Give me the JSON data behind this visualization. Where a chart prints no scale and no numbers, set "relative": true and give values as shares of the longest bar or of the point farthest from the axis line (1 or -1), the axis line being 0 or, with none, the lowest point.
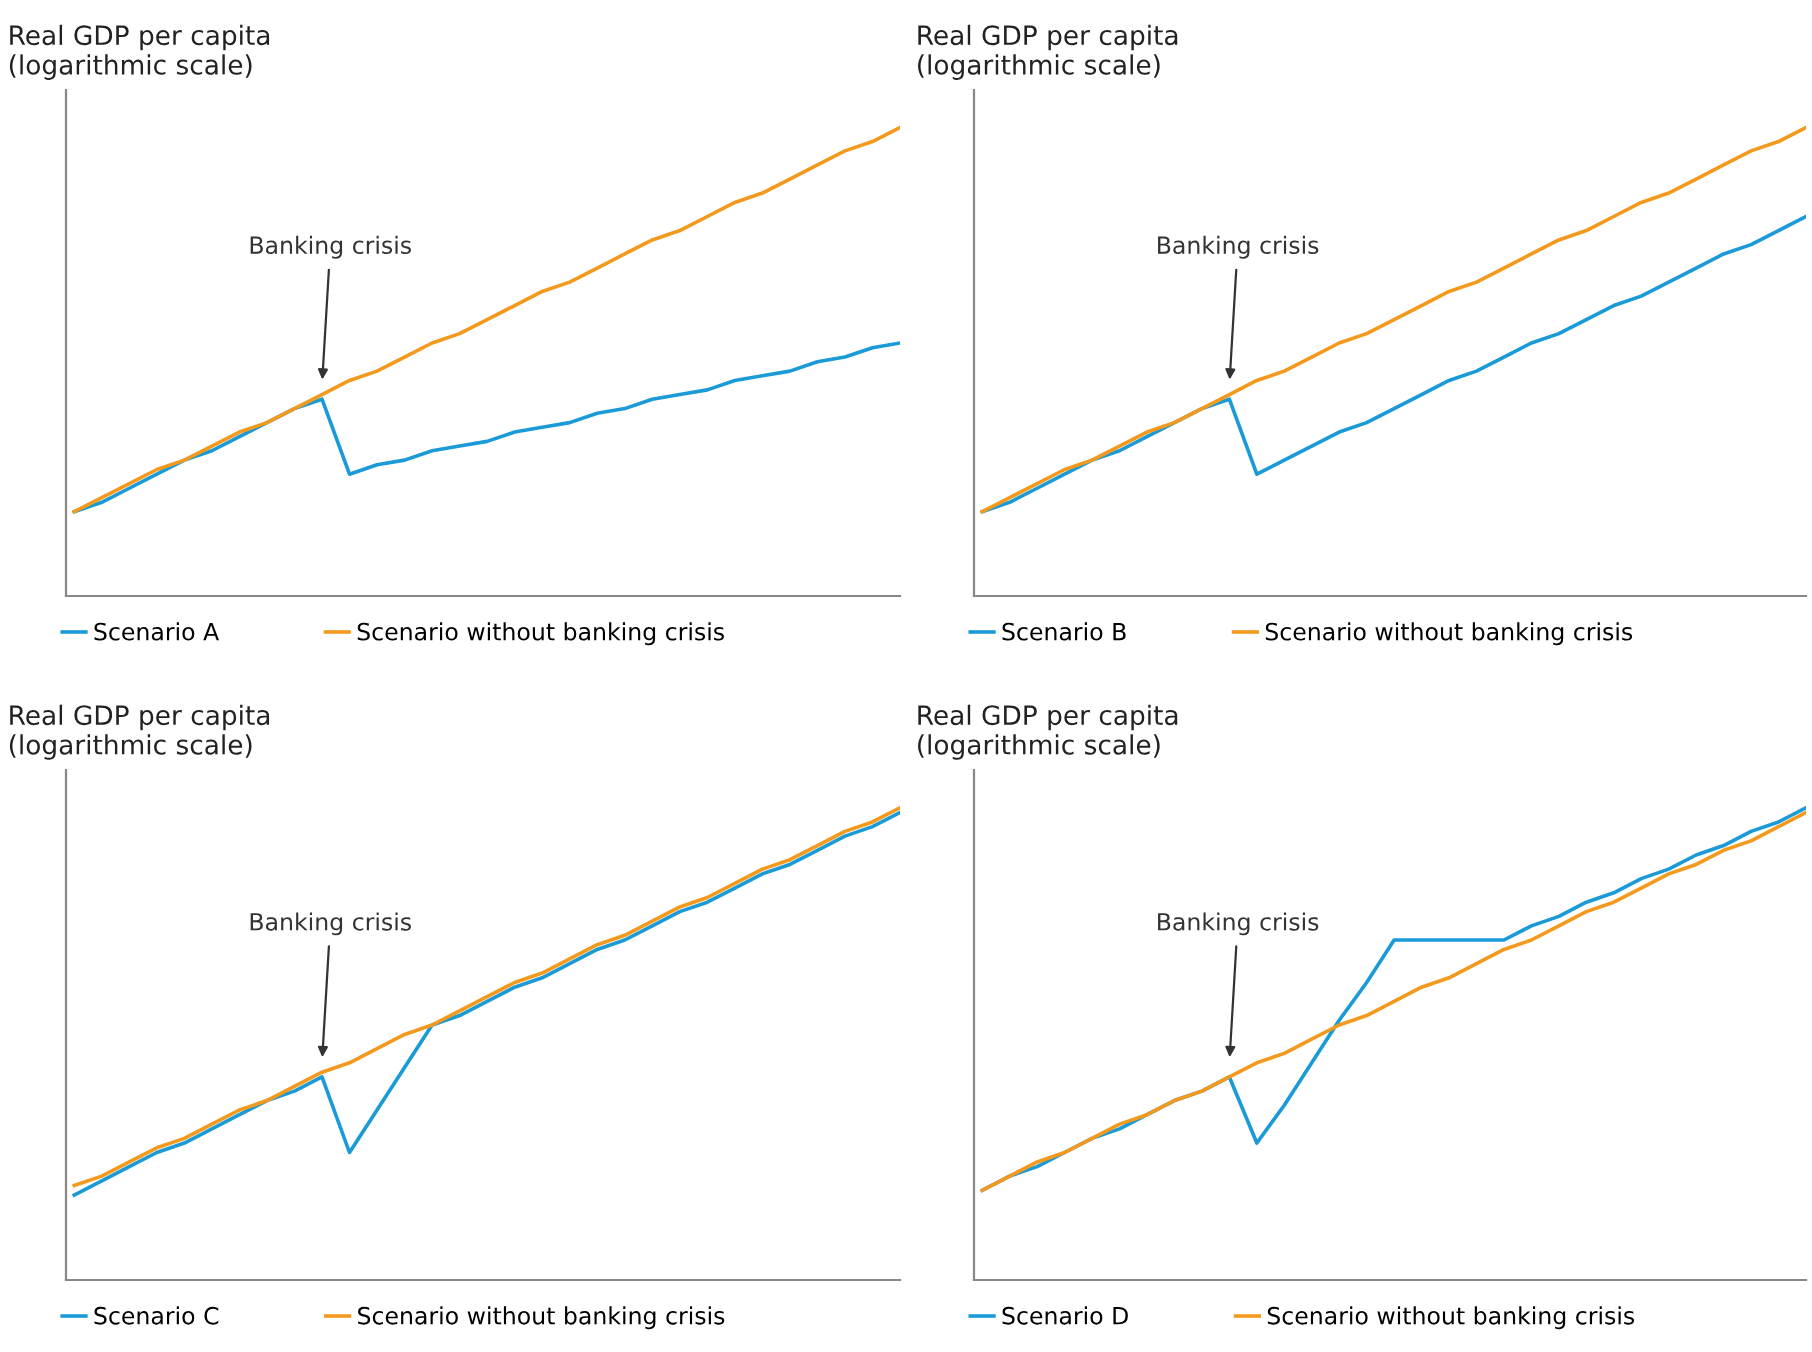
{
  "chart_data": [
    {
      "type": "line",
      "relative": true,
      "ylabel": "Real GDP per capita\n(logarithmic scale)",
      "annotations": [
        "Banking crisis"
      ],
      "legend": "bottom left",
      "grid": false,
      "marker": "none",
      "line_style": "solid",
      "categories": [
        null,
        null,
        null,
        null,
        null,
        null,
        null,
        null,
        null,
        null,
        null,
        null,
        null,
        null,
        null,
        null,
        null,
        null,
        null,
        null,
        null,
        null,
        null,
        null,
        null,
        null,
        null,
        null,
        null,
        null,
        null
      ],
      "series": [
        {
          "name": "Scenario A",
          "color": "#1a9ad6",
          "values": [
            0.18,
            0.2,
            0.23,
            0.26,
            0.29,
            0.31,
            0.34,
            0.37,
            0.4,
            0.42,
            0.26,
            0.28,
            0.29,
            0.31,
            0.32,
            0.33,
            0.35,
            0.36,
            0.37,
            0.39,
            0.4,
            0.42,
            0.43,
            0.44,
            0.46,
            0.47,
            0.48,
            0.5,
            0.51,
            0.53,
            0.54
          ]
        },
        {
          "name": "Scenario without banking crisis",
          "color": "#f39a1e",
          "values": [
            0.18,
            0.21,
            0.24,
            0.27,
            0.29,
            0.32,
            0.35,
            0.37,
            0.4,
            0.43,
            0.46,
            0.48,
            0.51,
            0.54,
            0.56,
            0.59,
            0.62,
            0.65,
            0.67,
            0.7,
            0.73,
            0.76,
            0.78,
            0.81,
            0.84,
            0.86,
            0.89,
            0.92,
            0.95,
            0.97,
            1.0
          ]
        }
      ]
    },
    {
      "type": "line",
      "relative": true,
      "ylabel": "Real GDP per capita\n(logarithmic scale)",
      "annotations": [
        "Banking crisis"
      ],
      "legend": "bottom left",
      "grid": false,
      "marker": "none",
      "line_style": "solid",
      "categories": [
        null,
        null,
        null,
        null,
        null,
        null,
        null,
        null,
        null,
        null,
        null,
        null,
        null,
        null,
        null,
        null,
        null,
        null,
        null,
        null,
        null,
        null,
        null,
        null,
        null,
        null,
        null,
        null,
        null,
        null,
        null
      ],
      "series": [
        {
          "name": "Scenario B",
          "color": "#1a9ad6",
          "values": [
            0.18,
            0.2,
            0.23,
            0.26,
            0.29,
            0.31,
            0.34,
            0.37,
            0.4,
            0.42,
            0.26,
            0.29,
            0.32,
            0.35,
            0.37,
            0.4,
            0.43,
            0.46,
            0.48,
            0.51,
            0.54,
            0.56,
            0.59,
            0.62,
            0.64,
            0.67,
            0.7,
            0.73,
            0.75,
            0.78,
            0.81
          ]
        },
        {
          "name": "Scenario without banking crisis",
          "color": "#f39a1e",
          "values": [
            0.18,
            0.21,
            0.24,
            0.27,
            0.29,
            0.32,
            0.35,
            0.37,
            0.4,
            0.43,
            0.46,
            0.48,
            0.51,
            0.54,
            0.56,
            0.59,
            0.62,
            0.65,
            0.67,
            0.7,
            0.73,
            0.76,
            0.78,
            0.81,
            0.84,
            0.86,
            0.89,
            0.92,
            0.95,
            0.97,
            1.0
          ]
        }
      ]
    },
    {
      "type": "line",
      "relative": true,
      "ylabel": "Real GDP per capita\n(logarithmic scale)",
      "annotations": [
        "Banking crisis"
      ],
      "legend": "bottom left",
      "grid": false,
      "marker": "none",
      "line_style": "solid",
      "categories": [
        null,
        null,
        null,
        null,
        null,
        null,
        null,
        null,
        null,
        null,
        null,
        null,
        null,
        null,
        null,
        null,
        null,
        null,
        null,
        null,
        null,
        null,
        null,
        null,
        null,
        null,
        null,
        null,
        null,
        null,
        null
      ],
      "series": [
        {
          "name": "Scenario C",
          "color": "#1a9ad6",
          "values": [
            0.18,
            0.21,
            0.24,
            0.27,
            0.29,
            0.32,
            0.35,
            0.38,
            0.4,
            0.43,
            0.27,
            0.36,
            0.45,
            0.54,
            0.56,
            0.59,
            0.62,
            0.64,
            0.67,
            0.7,
            0.72,
            0.75,
            0.78,
            0.8,
            0.83,
            0.86,
            0.88,
            0.91,
            0.94,
            0.96,
            0.99
          ]
        },
        {
          "name": "Scenario without banking crisis",
          "color": "#f39a1e",
          "values": [
            0.2,
            0.22,
            0.25,
            0.28,
            0.3,
            0.33,
            0.36,
            0.38,
            0.41,
            0.44,
            0.46,
            0.49,
            0.52,
            0.54,
            0.57,
            0.6,
            0.63,
            0.65,
            0.68,
            0.71,
            0.73,
            0.76,
            0.79,
            0.81,
            0.84,
            0.87,
            0.89,
            0.92,
            0.95,
            0.97,
            1.0
          ]
        }
      ]
    },
    {
      "type": "line",
      "relative": true,
      "ylabel": "Real GDP per capita\n(logarithmic scale)",
      "annotations": [
        "Banking crisis"
      ],
      "legend": "bottom left",
      "grid": false,
      "marker": "none",
      "line_style": "solid",
      "categories": [
        null,
        null,
        null,
        null,
        null,
        null,
        null,
        null,
        null,
        null,
        null,
        null,
        null,
        null,
        null,
        null,
        null,
        null,
        null,
        null,
        null,
        null,
        null,
        null,
        null,
        null,
        null,
        null,
        null,
        null,
        null
      ],
      "series": [
        {
          "name": "Scenario D",
          "color": "#1a9ad6",
          "values": [
            0.19,
            0.22,
            0.24,
            0.27,
            0.3,
            0.32,
            0.35,
            0.38,
            0.4,
            0.43,
            0.29,
            0.37,
            0.46,
            0.55,
            0.63,
            0.72,
            0.72,
            0.72,
            0.72,
            0.72,
            0.75,
            0.77,
            0.8,
            0.82,
            0.85,
            0.87,
            0.9,
            0.92,
            0.95,
            0.97,
            1.0
          ]
        },
        {
          "name": "Scenario without banking crisis",
          "color": "#f39a1e",
          "values": [
            0.19,
            0.22,
            0.25,
            0.27,
            0.3,
            0.33,
            0.35,
            0.38,
            0.4,
            0.43,
            0.46,
            0.48,
            0.51,
            0.54,
            0.56,
            0.59,
            0.62,
            0.64,
            0.67,
            0.7,
            0.72,
            0.75,
            0.78,
            0.8,
            0.83,
            0.86,
            0.88,
            0.91,
            0.93,
            0.96,
            0.99
          ]
        }
      ]
    }
  ]
}
